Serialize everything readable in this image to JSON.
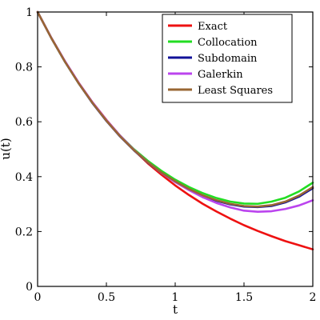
{
  "chart_data": {
    "type": "line",
    "xlabel": "t",
    "ylabel": "u(t)",
    "xlim": [
      0,
      2
    ],
    "ylim": [
      0,
      1
    ],
    "xticks": [
      "0",
      "0.5",
      "1",
      "1.5",
      "2"
    ],
    "yticks": [
      "0",
      "0.2",
      "0.4",
      "0.6",
      "0.8",
      "1"
    ],
    "grid": false,
    "legend_position": "top-right",
    "x": [
      0,
      0.1,
      0.2,
      0.3,
      0.4,
      0.5,
      0.6,
      0.7,
      0.8,
      0.9,
      1.0,
      1.1,
      1.2,
      1.3,
      1.4,
      1.5,
      1.6,
      1.7,
      1.8,
      1.9,
      2.0
    ],
    "series": [
      {
        "name": "Exact",
        "color": "#ee1111",
        "values": [
          1.0,
          0.905,
          0.819,
          0.741,
          0.67,
          0.607,
          0.549,
          0.497,
          0.449,
          0.407,
          0.368,
          0.333,
          0.301,
          0.273,
          0.247,
          0.223,
          0.202,
          0.183,
          0.165,
          0.15,
          0.135
        ]
      },
      {
        "name": "Collocation",
        "color": "#22dd22",
        "values": [
          1.0,
          0.905,
          0.818,
          0.739,
          0.668,
          0.605,
          0.549,
          0.5,
          0.458,
          0.421,
          0.389,
          0.362,
          0.34,
          0.322,
          0.309,
          0.302,
          0.301,
          0.309,
          0.323,
          0.346,
          0.378
        ]
      },
      {
        "name": "Subdomain",
        "color": "#111199",
        "values": [
          1.0,
          0.905,
          0.818,
          0.739,
          0.667,
          0.603,
          0.546,
          0.496,
          0.452,
          0.414,
          0.381,
          0.353,
          0.33,
          0.312,
          0.299,
          0.291,
          0.289,
          0.293,
          0.306,
          0.327,
          0.358
        ]
      },
      {
        "name": "Galerkin",
        "color": "#bb44ee",
        "values": [
          1.0,
          0.906,
          0.82,
          0.741,
          0.67,
          0.606,
          0.549,
          0.498,
          0.453,
          0.414,
          0.38,
          0.351,
          0.325,
          0.304,
          0.288,
          0.276,
          0.272,
          0.274,
          0.282,
          0.295,
          0.314
        ]
      },
      {
        "name": "Least Squares",
        "color": "#996633",
        "values": [
          1.0,
          0.905,
          0.818,
          0.739,
          0.668,
          0.604,
          0.547,
          0.497,
          0.453,
          0.415,
          0.383,
          0.355,
          0.332,
          0.314,
          0.301,
          0.293,
          0.291,
          0.296,
          0.309,
          0.331,
          0.362
        ]
      }
    ]
  }
}
